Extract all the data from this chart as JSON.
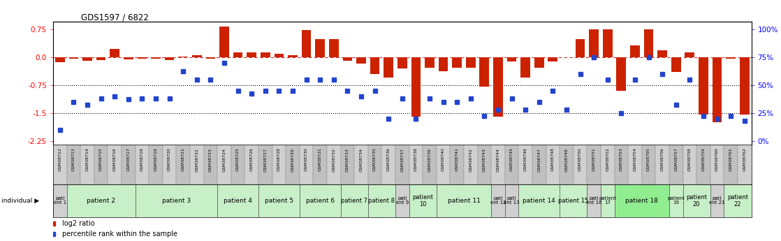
{
  "title": "GDS1597 / 6822",
  "gsm_labels": [
    "GSM38712",
    "GSM38713",
    "GSM38714",
    "GSM38715",
    "GSM38716",
    "GSM38717",
    "GSM38718",
    "GSM38719",
    "GSM38720",
    "GSM38721",
    "GSM38722",
    "GSM38723",
    "GSM38724",
    "GSM38725",
    "GSM38726",
    "GSM38727",
    "GSM38728",
    "GSM38729",
    "GSM38730",
    "GSM38731",
    "GSM38732",
    "GSM38733",
    "GSM38734",
    "GSM38735",
    "GSM38736",
    "GSM38737",
    "GSM38738",
    "GSM38739",
    "GSM38740",
    "GSM38741",
    "GSM38742",
    "GSM38743",
    "GSM38744",
    "GSM38745",
    "GSM38746",
    "GSM38747",
    "GSM38748",
    "GSM38749",
    "GSM38750",
    "GSM38751",
    "GSM38752",
    "GSM38753",
    "GSM38754",
    "GSM38755",
    "GSM38756",
    "GSM38757",
    "GSM38758",
    "GSM38759",
    "GSM38760",
    "GSM38761",
    "GSM38762"
  ],
  "log2_ratio": [
    -0.13,
    -0.05,
    -0.1,
    -0.08,
    0.22,
    -0.07,
    -0.05,
    -0.04,
    -0.08,
    0.02,
    0.05,
    -0.04,
    0.82,
    0.12,
    0.13,
    0.13,
    0.08,
    0.06,
    0.72,
    0.48,
    0.48,
    -0.1,
    -0.18,
    -0.45,
    -0.55,
    -0.3,
    -1.6,
    -0.28,
    -0.38,
    -0.28,
    -0.28,
    -0.8,
    -1.6,
    -0.12,
    -0.55,
    -0.28,
    -0.12,
    0.0,
    0.48,
    0.75,
    0.75,
    -0.9,
    0.32,
    0.75,
    0.18,
    -0.4,
    0.12,
    -1.55,
    -1.75,
    -0.05,
    -1.55
  ],
  "percentile_rank": [
    10,
    35,
    32,
    38,
    40,
    37,
    38,
    38,
    38,
    62,
    55,
    55,
    70,
    45,
    42,
    45,
    45,
    45,
    55,
    55,
    55,
    45,
    40,
    45,
    20,
    38,
    20,
    38,
    35,
    35,
    38,
    22,
    28,
    38,
    28,
    35,
    45,
    28,
    60,
    75,
    55,
    25,
    55,
    75,
    60,
    32,
    55,
    22,
    20,
    22,
    18
  ],
  "patients": [
    {
      "label": "pati\nent 1",
      "start": 0,
      "end": 1,
      "color": "#d0d0d0"
    },
    {
      "label": "patient 2",
      "start": 1,
      "end": 6,
      "color": "#c8f0c8"
    },
    {
      "label": "patient 3",
      "start": 6,
      "end": 12,
      "color": "#c8f0c8"
    },
    {
      "label": "patient 4",
      "start": 12,
      "end": 15,
      "color": "#c8f0c8"
    },
    {
      "label": "patient 5",
      "start": 15,
      "end": 18,
      "color": "#c8f0c8"
    },
    {
      "label": "patient 6",
      "start": 18,
      "end": 21,
      "color": "#c8f0c8"
    },
    {
      "label": "patient 7",
      "start": 21,
      "end": 23,
      "color": "#c8f0c8"
    },
    {
      "label": "patient 8",
      "start": 23,
      "end": 25,
      "color": "#c8f0c8"
    },
    {
      "label": "pati\nent 9",
      "start": 25,
      "end": 26,
      "color": "#d0d0d0"
    },
    {
      "label": "patient\n10",
      "start": 26,
      "end": 28,
      "color": "#c8f0c8"
    },
    {
      "label": "patient 11",
      "start": 28,
      "end": 32,
      "color": "#c8f0c8"
    },
    {
      "label": "pati\nent 12",
      "start": 32,
      "end": 33,
      "color": "#d0d0d0"
    },
    {
      "label": "pati\nent 13",
      "start": 33,
      "end": 34,
      "color": "#d0d0d0"
    },
    {
      "label": "patient 14",
      "start": 34,
      "end": 37,
      "color": "#c8f0c8"
    },
    {
      "label": "patient 15",
      "start": 37,
      "end": 39,
      "color": "#c8f0c8"
    },
    {
      "label": "pati\nent 16",
      "start": 39,
      "end": 40,
      "color": "#d0d0d0"
    },
    {
      "label": "patient\n17",
      "start": 40,
      "end": 41,
      "color": "#c8f0c8"
    },
    {
      "label": "patient 18",
      "start": 41,
      "end": 45,
      "color": "#90ee90"
    },
    {
      "label": "patient\n19",
      "start": 45,
      "end": 46,
      "color": "#c8f0c8"
    },
    {
      "label": "patient\n20",
      "start": 46,
      "end": 48,
      "color": "#c8f0c8"
    },
    {
      "label": "pati\nent 21",
      "start": 48,
      "end": 49,
      "color": "#d0d0d0"
    },
    {
      "label": "patient\n22",
      "start": 49,
      "end": 51,
      "color": "#c8f0c8"
    }
  ],
  "ylim": [
    -2.35,
    0.95
  ],
  "yticks_left": [
    0.75,
    0.0,
    -0.75,
    -1.5,
    -2.25
  ],
  "yticks_right": [
    100,
    75,
    50,
    25,
    0
  ],
  "bar_color": "#cc2200",
  "dot_color": "#2244cc",
  "dotted_lines": [
    -0.75,
    -1.5
  ],
  "gsm_col_colors": [
    "#d0d0d0",
    "#c0c0c0"
  ]
}
